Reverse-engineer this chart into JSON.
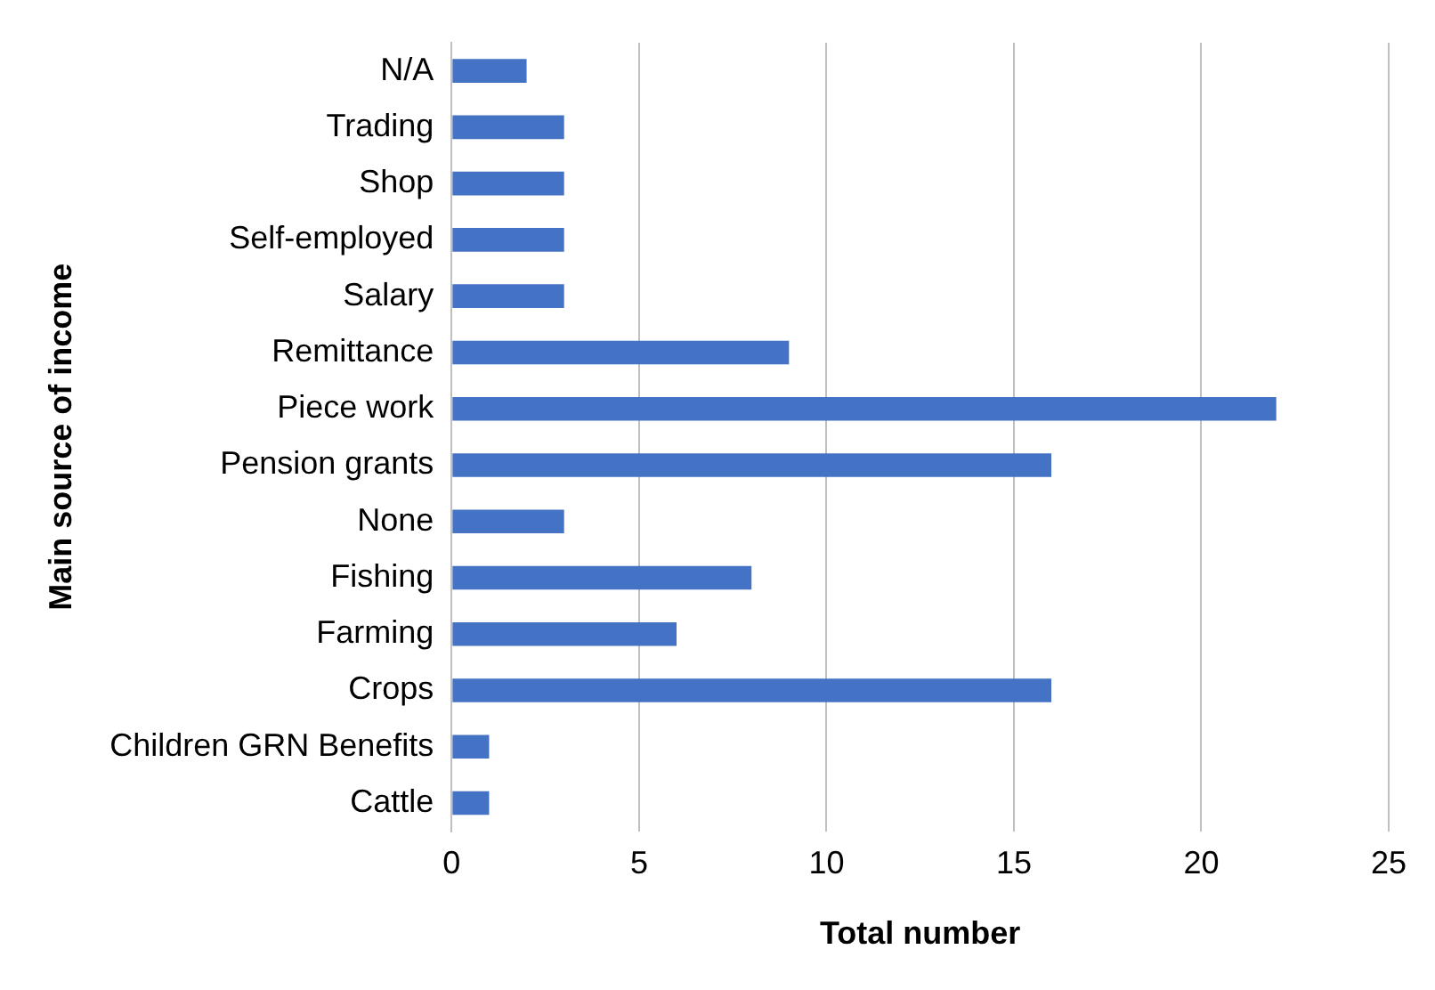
{
  "chart_data": {
    "type": "bar",
    "orientation": "horizontal",
    "xlabel": "Total number",
    "ylabel": "Main source of income",
    "categories": [
      "N/A",
      "Trading",
      "Shop",
      "Self-employed",
      "Salary",
      "Remittance",
      "Piece work",
      "Pension grants",
      "None",
      "Fishing",
      "Farming",
      "Crops",
      "Children GRN Benefits",
      "Cattle"
    ],
    "values": [
      2,
      3,
      3,
      3,
      3,
      9,
      22,
      16,
      3,
      8,
      6,
      16,
      1,
      1
    ],
    "color": "#4472c4",
    "xlim": [
      0,
      25
    ],
    "xticks": [
      0,
      5,
      10,
      15,
      20,
      25
    ],
    "grid": "x",
    "legend": false
  }
}
